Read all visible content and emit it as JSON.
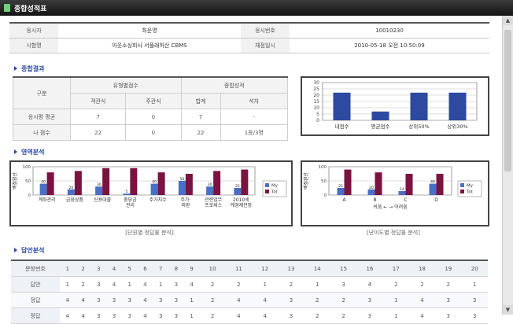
{
  "window": {
    "title": "종합성적표"
  },
  "info": {
    "rows": [
      [
        "응시자",
        "최운영",
        "응시번호",
        "10010230"
      ],
      [
        "시험명",
        "아웃소싱회사 서플래허산 CBMS",
        "채점일시",
        "2010-05-18 오전 10:50:09"
      ]
    ]
  },
  "sections": {
    "overall": "종합결과",
    "area": "영역분석",
    "answer": "답안분석"
  },
  "score_table": {
    "group_header_left": "구분",
    "group_header_1": "유형별점수",
    "group_header_2": "종합성적",
    "subheaders": [
      "객관식",
      "주관식",
      "합계",
      "석차"
    ],
    "rows": [
      {
        "label": "응시평 평균",
        "values": [
          "7",
          "0",
          "7",
          "-"
        ]
      },
      {
        "label": "나 점수",
        "values": [
          "22",
          "0",
          "22",
          "1등/3명"
        ]
      }
    ]
  },
  "chart_data": [
    {
      "type": "bar",
      "categories": [
        "내점수",
        "평균점수",
        "상위50%",
        "상위30%"
      ],
      "values": [
        22,
        7,
        22,
        22
      ],
      "ylim": [
        0,
        30
      ],
      "yticks": [
        0,
        5,
        10,
        15,
        20,
        25,
        30
      ],
      "colors": {
        "bar": "#2e4aa0"
      }
    },
    {
      "type": "bar",
      "ylabel": "백점환산",
      "ylim": [
        0,
        100
      ],
      "yticks": [
        0,
        50,
        100
      ],
      "categories": [
        "계좌관리",
        "금융상품",
        "신용대출",
        "충당금관리",
        "주가지수",
        "주가·외환",
        "관련업무프로세스",
        "2010세계경제전망"
      ],
      "series": [
        {
          "name": "My",
          "values": [
            40,
            20,
            30,
            5,
            40,
            50,
            30,
            25
          ],
          "color": "#4a6fc4"
        },
        {
          "name": "Tot",
          "values": [
            80,
            85,
            95,
            95,
            80,
            75,
            85,
            90
          ],
          "color": "#7a1340"
        }
      ],
      "data_labels": [
        "40",
        "20",
        "30",
        "5",
        "40",
        "50",
        "30",
        "25"
      ],
      "legend": "right",
      "caption": "[단원별 정답률 분석]"
    },
    {
      "type": "bar",
      "ylabel": "백점환산",
      "ylim": [
        0,
        100
      ],
      "yticks": [
        0,
        50,
        100
      ],
      "categories": [
        "A",
        "B",
        "C",
        "D"
      ],
      "series": [
        {
          "name": "My",
          "values": [
            25,
            20,
            14,
            40
          ],
          "color": "#4a6fc4"
        },
        {
          "name": "Tot",
          "values": [
            90,
            80,
            75,
            75
          ],
          "color": "#7a1340"
        }
      ],
      "data_labels": [
        "25",
        "20",
        "14",
        "40"
      ],
      "xnote": "쉬움 ← → 어려움",
      "legend": "right",
      "caption": "[난이도별 정답률 분석]"
    }
  ],
  "answers": {
    "header_label": "문항번호",
    "numbers": [
      "1",
      "2",
      "3",
      "4",
      "5",
      "6",
      "7",
      "8",
      "9",
      "10",
      "11",
      "12",
      "13",
      "14",
      "15",
      "16",
      "17",
      "18",
      "19",
      "20"
    ],
    "rows": [
      {
        "label": "답안",
        "values": [
          "1",
          "2",
          "3",
          "4",
          "1",
          "4",
          "1",
          "3",
          "4",
          "2",
          "2",
          "1",
          "2",
          "1",
          "3",
          "4",
          "2",
          "2",
          "2",
          "1"
        ]
      },
      {
        "label": "정답",
        "values": [
          "4",
          "4",
          "3",
          "3",
          "3",
          "4",
          "3",
          "3",
          "1",
          "2",
          "4",
          "4",
          "3",
          "2",
          "2",
          "3",
          "1",
          "4",
          "3",
          "3"
        ]
      },
      {
        "label": "정답",
        "values": [
          "4",
          "4",
          "3",
          "3",
          "3",
          "4",
          "3",
          "3",
          "1",
          "2",
          "4",
          "4",
          "3",
          "2",
          "2",
          "3",
          "1",
          "4",
          "3",
          "3"
        ]
      }
    ]
  }
}
